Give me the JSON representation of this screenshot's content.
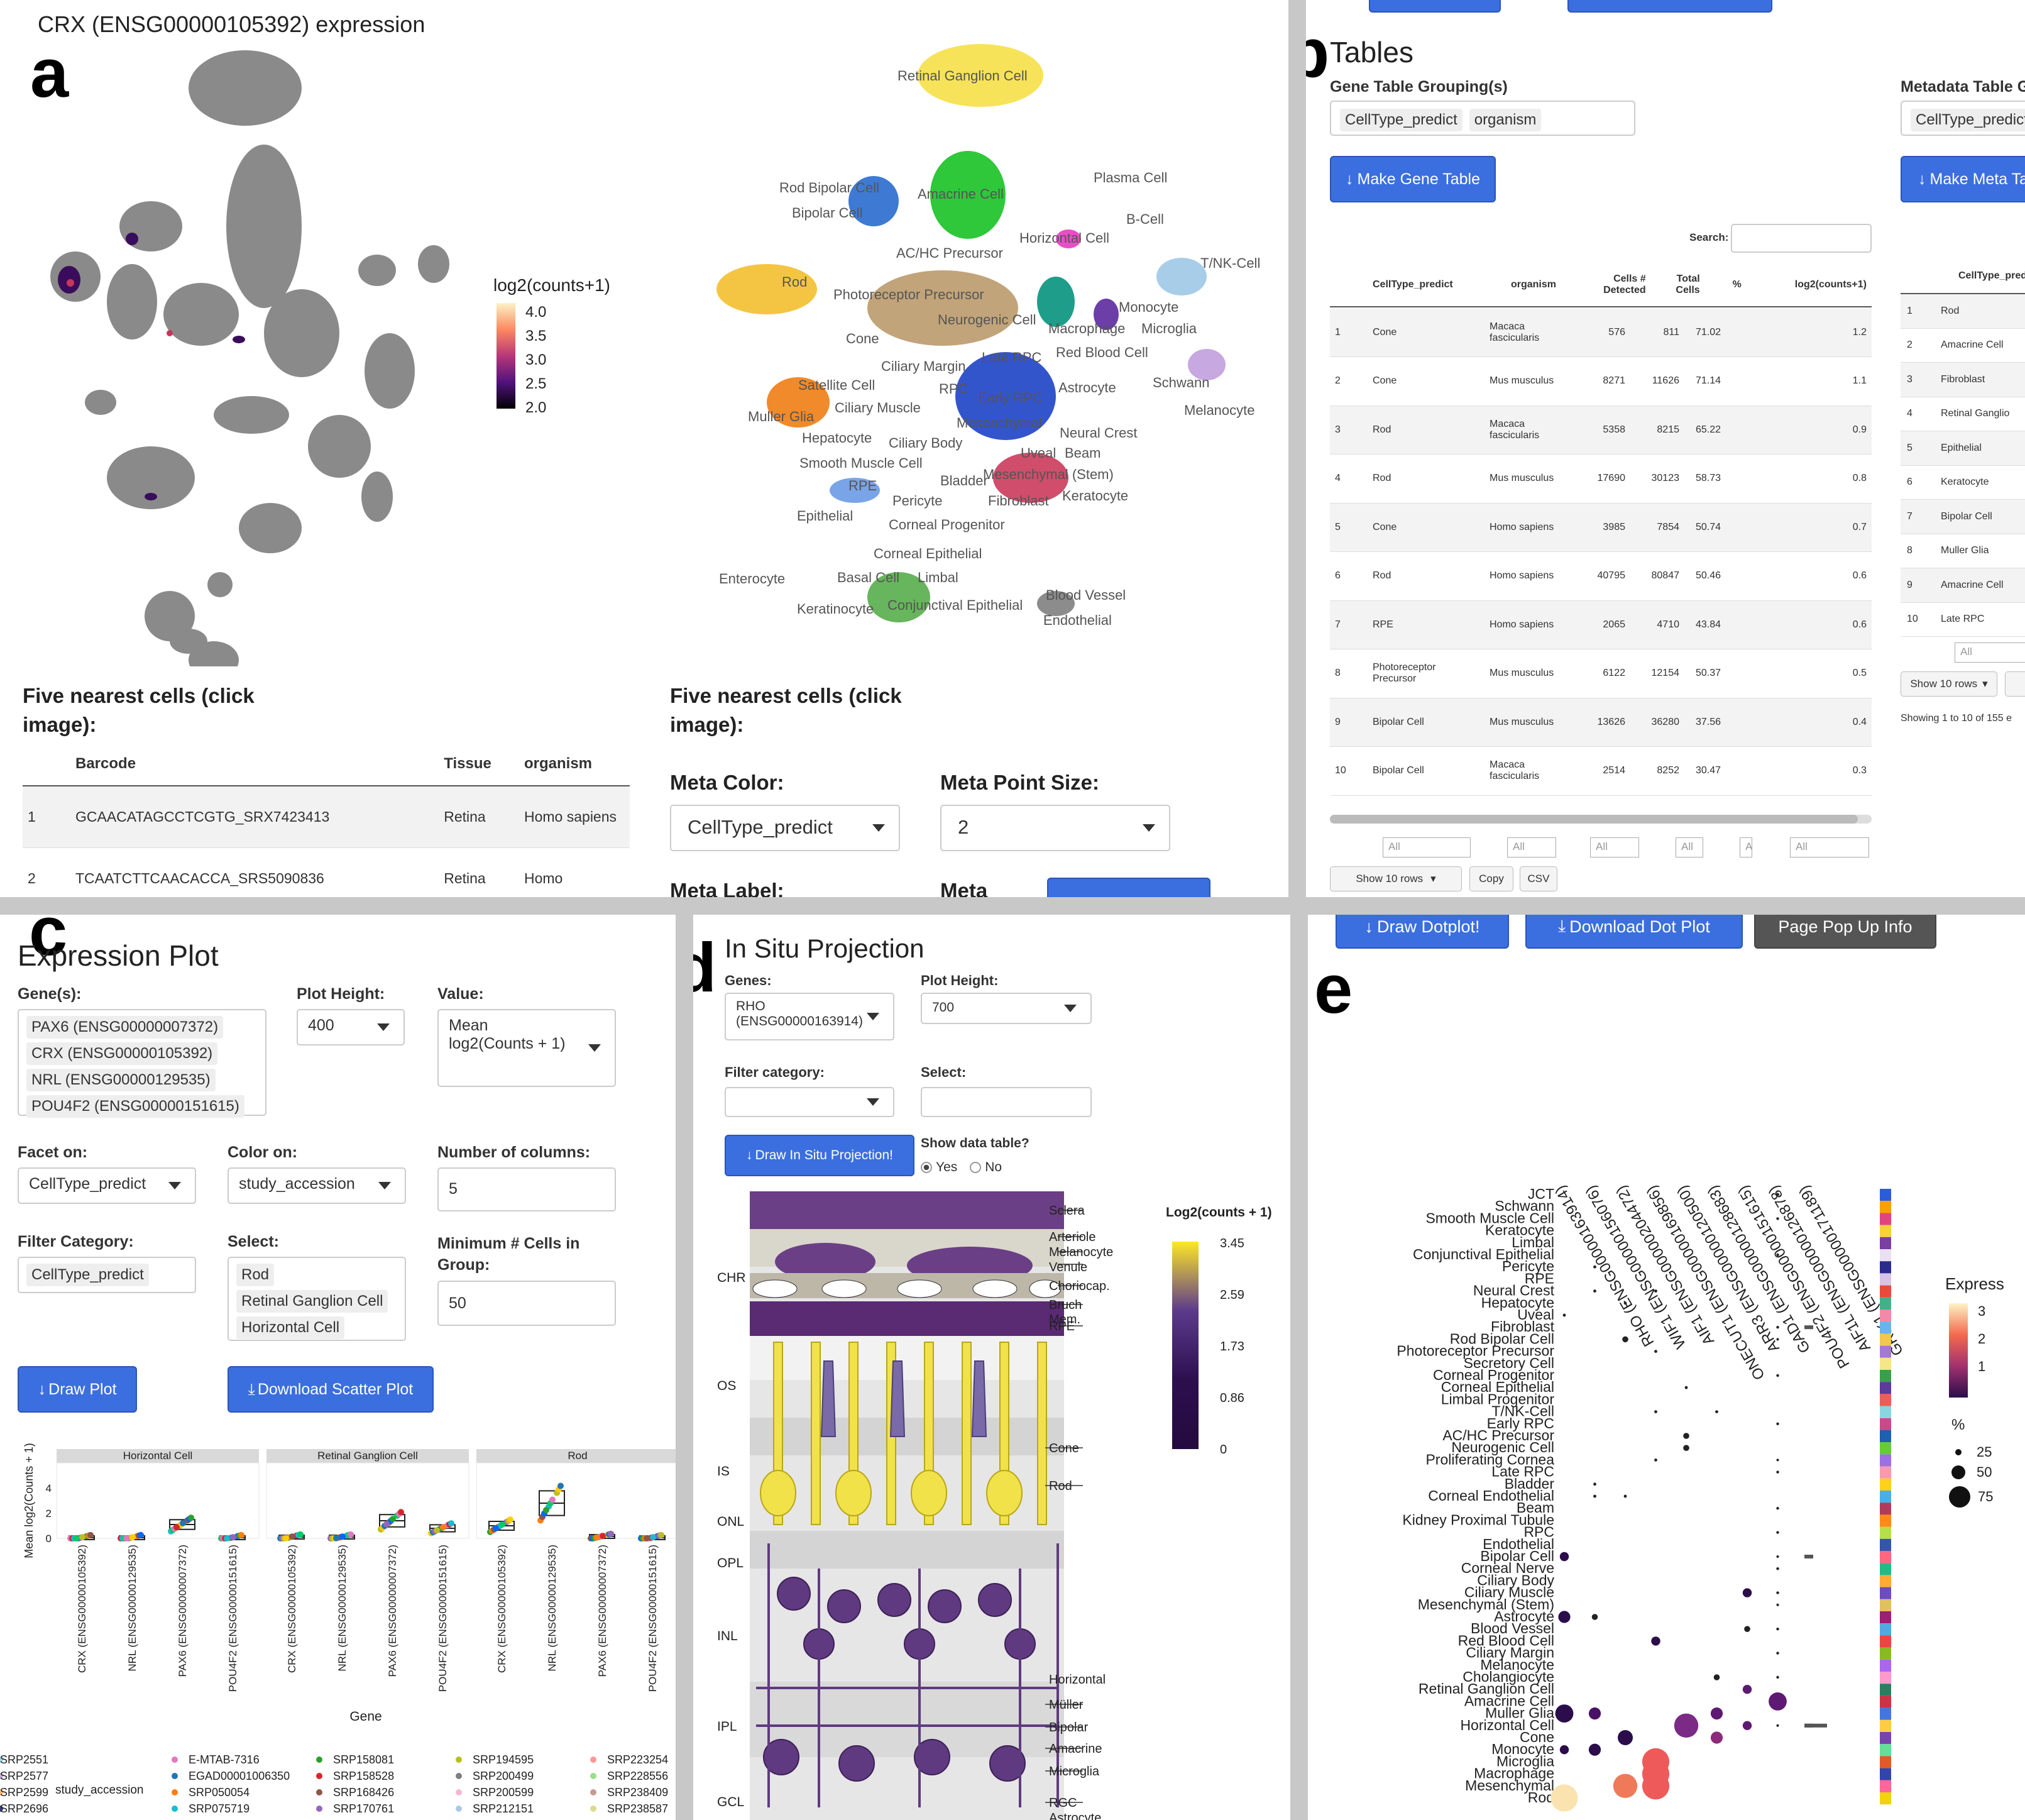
{
  "panel_a": {
    "letter": "a",
    "title": "CRX (ENSG00000105392) expression",
    "legend_title": "log2(counts+1)",
    "legend_ticks": [
      "4.0",
      "3.5",
      "3.0",
      "2.5",
      "2.0"
    ],
    "umap_labels": [
      "Retinal Ganglion Cell",
      "Plasma Cell",
      "Rod Bipolar Cell",
      "Amacrine Cell",
      "Bipolar Cell",
      "B-Cell",
      "Horizontal Cell",
      "AC/HC Precursor",
      "T/NK-Cell",
      "Rod",
      "Photoreceptor Precursor",
      "Neurogenic Cell",
      "Monocyte",
      "Cone",
      "Macrophage",
      "Microglia",
      "Late RPC",
      "Red Blood Cell",
      "Ciliary Margin",
      "Schwann",
      "Satellite Cell",
      "RPC",
      "Early RPC",
      "Astrocyte",
      "Melanocyte",
      "Muller Glia",
      "Ciliary Muscle",
      "Mesenchymal",
      "Neural Crest",
      "Hepatocyte",
      "Ciliary Body",
      "Uveal",
      "Beam",
      "Smooth Muscle Cell",
      "Mesenchymal (Stem)",
      "RPE",
      "Bladder",
      "Pericyte",
      "Fibroblast",
      "Keratocyte",
      "Epithelial",
      "Corneal Progenitor",
      "Corneal Epithelial",
      "Enterocyte",
      "Basal Cell",
      "Limbal",
      "Blood Vessel",
      "Keratinocyte",
      "Conjunctival Epithelial",
      "Endothelial"
    ],
    "nearest_left": {
      "heading": "Five nearest cells (click image):",
      "columns": [
        "Barcode",
        "Tissue",
        "organism"
      ],
      "rows": [
        [
          "1",
          "GCAACATAGCCTCGTG_SRX7423413",
          "Retina",
          "Homo sapiens"
        ],
        [
          "2",
          "TCAATCTTCAACACCA_SRS5090836",
          "Retina",
          "Homo"
        ]
      ]
    },
    "nearest_right": {
      "heading": "Five nearest cells (click image):",
      "meta_color_label": "Meta Color:",
      "meta_color_value": "CellType_predict",
      "meta_point_size_label": "Meta Point Size:",
      "meta_point_size_value": "2",
      "meta_label_label": "Meta Label:",
      "meta_label2": "Meta"
    }
  },
  "panel_b": {
    "letter": "b",
    "title": "Tables",
    "gene_group_label": "Gene Table Grouping(s)",
    "gene_group_tags": [
      "CellType_predict",
      "organism"
    ],
    "make_gene_table": "Make Gene Table",
    "meta_group_label": "Metadata Table Gr",
    "meta_group_tag": "CellType_predict",
    "make_meta_table": "Make Meta Ta",
    "search_label": "Search:",
    "columns": [
      "CellType_predict",
      "organism",
      "Cells # Detected",
      "Total Cells",
      "%",
      "log2(counts+1)"
    ],
    "rows": [
      [
        "1",
        "Cone",
        "Macaca fascicularis",
        "576",
        "811",
        "71.02",
        "1.2"
      ],
      [
        "2",
        "Cone",
        "Mus musculus",
        "8271",
        "11626",
        "71.14",
        "1.1"
      ],
      [
        "3",
        "Rod",
        "Macaca fascicularis",
        "5358",
        "8215",
        "65.22",
        "0.9"
      ],
      [
        "4",
        "Rod",
        "Mus musculus",
        "17690",
        "30123",
        "58.73",
        "0.8"
      ],
      [
        "5",
        "Cone",
        "Homo sapiens",
        "3985",
        "7854",
        "50.74",
        "0.7"
      ],
      [
        "6",
        "Rod",
        "Homo sapiens",
        "40795",
        "80847",
        "50.46",
        "0.6"
      ],
      [
        "7",
        "RPE",
        "Homo sapiens",
        "2065",
        "4710",
        "43.84",
        "0.6"
      ],
      [
        "8",
        "Photoreceptor Precursor",
        "Mus musculus",
        "6122",
        "12154",
        "50.37",
        "0.5"
      ],
      [
        "9",
        "Bipolar Cell",
        "Mus musculus",
        "13626",
        "36280",
        "37.56",
        "0.4"
      ],
      [
        "10",
        "Bipolar Cell",
        "Macaca fascicularis",
        "2514",
        "8252",
        "30.47",
        "0.3"
      ]
    ],
    "filter_all": "All",
    "show_rows": "Show 10 rows",
    "copy": "Copy",
    "csv": "CSV",
    "meta_col": "CellType_pred",
    "meta_rows": [
      [
        "1",
        "Rod"
      ],
      [
        "2",
        "Amacrine Cell"
      ],
      [
        "3",
        "Fibroblast"
      ],
      [
        "4",
        "Retinal Ganglio"
      ],
      [
        "5",
        "Epithelial"
      ],
      [
        "6",
        "Keratocyte"
      ],
      [
        "7",
        "Bipolar Cell"
      ],
      [
        "8",
        "Muller Glia"
      ],
      [
        "9",
        "Amacrine Cell"
      ],
      [
        "10",
        "Late RPC"
      ]
    ],
    "meta_show_rows": "Show 10 rows",
    "meta_showing": "Showing 1 to 10 of 155 e"
  },
  "panel_c": {
    "letter": "c",
    "title": "Expression Plot",
    "genes_label": "Gene(s):",
    "genes": [
      "PAX6 (ENSG00000007372)",
      "CRX (ENSG00000105392)",
      "NRL (ENSG00000129535)",
      "POU4F2 (ENSG00000151615)"
    ],
    "plot_height_label": "Plot Height:",
    "plot_height": "400",
    "value_label": "Value:",
    "value": "Mean log2(Counts + 1)",
    "facet_label": "Facet on:",
    "facet": "CellType_predict",
    "color_label": "Color on:",
    "color": "study_accession",
    "ncol_label": "Number of columns:",
    "ncol": "5",
    "filter_label": "Filter Category:",
    "filter": "CellType_predict",
    "select_label": "Select:",
    "select": [
      "Rod",
      "Retinal Ganglion Cell",
      "Horizontal Cell"
    ],
    "min_cells_label": "Minimum # Cells in Group:",
    "min_cells": "50",
    "draw_plot": "Draw Plot",
    "download_scatter": "Download Scatter Plot",
    "ylabel": "Mean log2(Counts + 1)",
    "xlabel": "Gene",
    "legend_title": "study_accession",
    "legend_items": [
      "E-MTAB-7316",
      "EGAD00001006350",
      "SRP050054",
      "SRP075719",
      "SRP158081",
      "SRP158528",
      "SRP168426",
      "SRP170761",
      "SRP194595",
      "SRP200499",
      "SRP200599",
      "SRP212151",
      "SRP223254",
      "SRP228556",
      "SRP238409",
      "SRP238587",
      "SRP2551",
      "SRP2577",
      "SRP2599",
      "SRP2696"
    ]
  },
  "panel_d": {
    "letter": "d",
    "title": "In Situ Projection",
    "genes_label": "Genes:",
    "gene": "RHO (ENSG00000163914)",
    "plot_height_label": "Plot Height:",
    "plot_height": "700",
    "filter_label": "Filter category:",
    "select_label": "Select:",
    "draw_button": "Draw In Situ Projection!",
    "show_table_label": "Show data table?",
    "yes": "Yes",
    "no": "No",
    "layers_left": [
      "CHR",
      "OS",
      "IS",
      "ONL",
      "OPL",
      "INL",
      "IPL",
      "GCL"
    ],
    "annotations": [
      "Sclera",
      "Arteriole",
      "Melanocyte",
      "Venule",
      "Choriocap.",
      "Bruch Mem.",
      "RPE",
      "Cone",
      "Rod",
      "Horizontal",
      "Müller",
      "Bipolar",
      "Amacrine",
      "Microglia",
      "RGC",
      "Astrocyte"
    ],
    "cbar_title": "Log2(counts + 1)",
    "cbar_ticks": [
      "3.45",
      "2.59",
      "1.73",
      "0.86",
      "0"
    ]
  },
  "panel_e": {
    "letter": "e",
    "buttons": [
      "Draw Dotplot!",
      "Download Dot Plot",
      "Page Pop Up Info"
    ],
    "genes": [
      "RHO (ENSG00000163914)",
      "WIF1 (ENSG00000156076)",
      "AIF1 (ENSG00000204472)",
      "ONECUT1 (ENSG00000169856)",
      "ARR3 (ENSG00000120500)",
      "GAD1 (ENSG00000128683)",
      "POU4F2 (ENSG00000151615)",
      "AIF1L (ENSG00000126878)",
      "GRIK1 (ENSG00000171189)"
    ],
    "rows": [
      "JCT",
      "Schwann",
      "Smooth Muscle Cell",
      "Keratocyte",
      "Limbal",
      "Conjunctival Epithelial",
      "Pericyte",
      "RPE",
      "Neural Crest",
      "Hepatocyte",
      "Uveal",
      "Fibroblast",
      "Rod Bipolar Cell",
      "Photoreceptor Precursor",
      "Secretory Cell",
      "Corneal Progenitor",
      "Corneal Epithelial",
      "Limbal Progenitor",
      "T/NK-Cell",
      "Early RPC",
      "AC/HC Precursor",
      "Neurogenic Cell",
      "Proliferating Cornea",
      "Late RPC",
      "Bladder",
      "Corneal Endothelial",
      "Beam",
      "Kidney Proximal Tubule",
      "RPC",
      "Endothelial",
      "Bipolar Cell",
      "Corneal Nerve",
      "Ciliary Body",
      "Ciliary Muscle",
      "Mesenchymal (Stem)",
      "Astrocyte",
      "Blood Vessel",
      "Red Blood Cell",
      "Ciliary Margin",
      "Melanocyte",
      "Cholangiocyte",
      "Retinal Ganglion Cell",
      "Amacrine Cell",
      "Muller Glia",
      "Horizontal Cell",
      "Cone",
      "Monocyte",
      "Microglia",
      "Macrophage",
      "Mesenchymal",
      "Rod"
    ],
    "express_label": "Express",
    "express_ticks": [
      "3",
      "2",
      "1"
    ],
    "pct_label": "%",
    "pct_ticks": [
      "25",
      "50",
      "75"
    ]
  },
  "colors": {
    "button_blue": "#3b6fe0",
    "divider_gray": "#c8c8c8",
    "umap_gray": "#8a8a8a"
  }
}
